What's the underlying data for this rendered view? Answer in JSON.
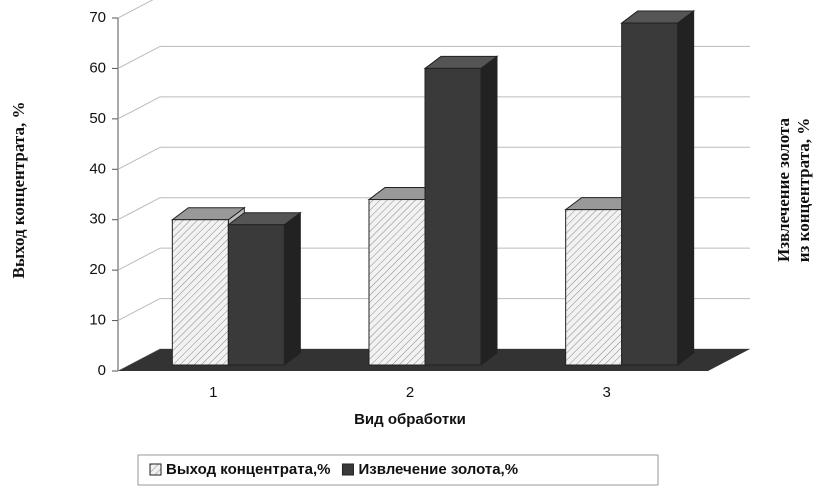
{
  "chart_data": {
    "type": "bar3d",
    "categories": [
      "1",
      "2",
      "3"
    ],
    "series": [
      {
        "name": "Выход концентрата,%",
        "color": "#f0f0f0",
        "values": [
          30,
          34,
          32
        ]
      },
      {
        "name": "Извлечение золота,%",
        "color": "#3a3a3a",
        "values": [
          29,
          60,
          69
        ]
      }
    ],
    "ylim": [
      0,
      70
    ],
    "yticks": [
      0,
      10,
      20,
      30,
      40,
      50,
      60,
      70
    ],
    "grid": true,
    "xlabel": "Вид обработки",
    "ylabel": "Выход концентрата, %",
    "y2label": [
      "Извлечение золота",
      "из концентрата, %"
    ],
    "legend": "bottom"
  }
}
